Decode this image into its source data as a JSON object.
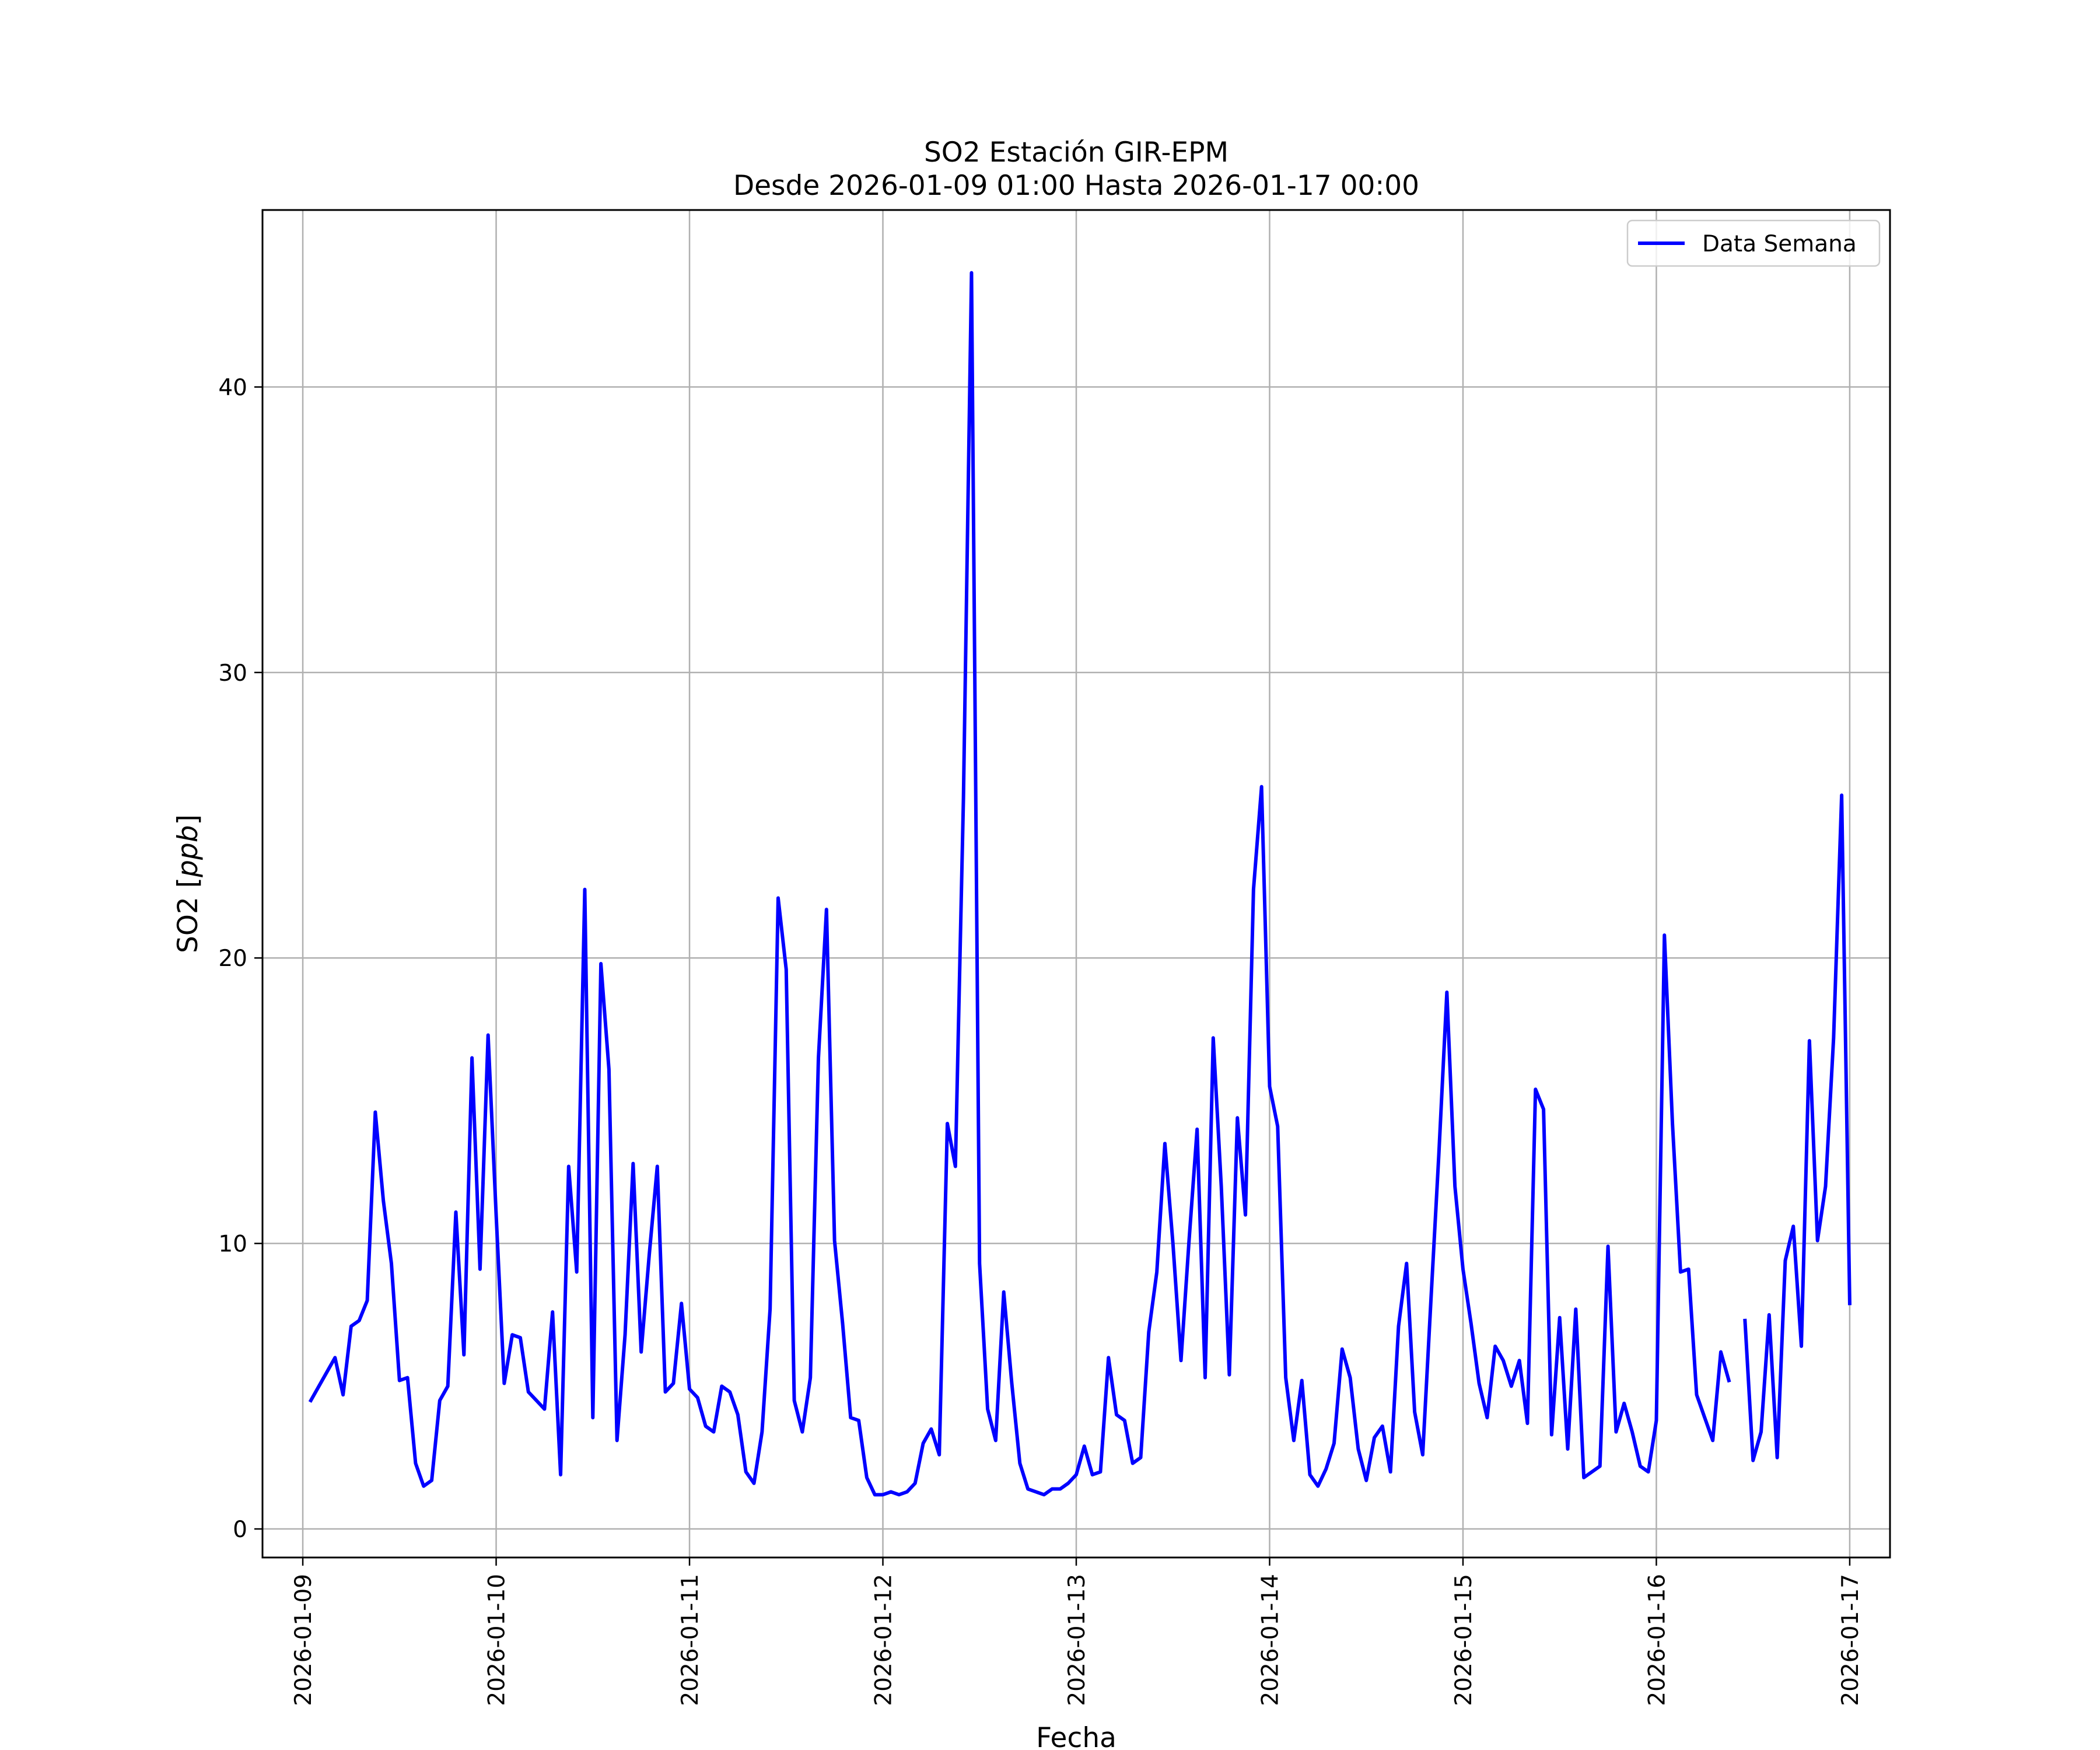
{
  "chart_data": {
    "type": "line",
    "title": "SO2 Estación GIR-EPM",
    "subtitle": "Desde 2026-01-09 01:00 Hasta 2026-01-17 00:00",
    "xlabel": "Fecha",
    "ylabel": "SO2 [ppb]",
    "xlim": [
      "2026-01-08T19:00",
      "2026-01-17T05:00"
    ],
    "ylim": [
      -1,
      46.2
    ],
    "x_ticks": [
      "2026-01-09",
      "2026-01-10",
      "2026-01-11",
      "2026-01-12",
      "2026-01-13",
      "2026-01-14",
      "2026-01-15",
      "2026-01-16",
      "2026-01-17"
    ],
    "y_ticks": [
      0,
      10,
      20,
      30,
      40
    ],
    "grid": true,
    "legend_position": "top-right",
    "colors": {
      "series": "#0000ff",
      "grid": "#b0b0b0"
    },
    "series": [
      {
        "name": "Data Semana",
        "start": "2026-01-09T01:00",
        "interval_hours": 1,
        "values": [
          4.5,
          5.0,
          5.5,
          6.0,
          4.7,
          7.1,
          7.3,
          8.0,
          14.6,
          11.5,
          9.3,
          5.2,
          5.3,
          2.3,
          1.5,
          1.7,
          4.5,
          5.0,
          11.1,
          6.1,
          16.5,
          9.1,
          17.3,
          11.0,
          5.1,
          6.8,
          6.7,
          4.8,
          4.5,
          4.2,
          7.6,
          1.9,
          12.7,
          9.0,
          22.4,
          3.9,
          19.8,
          16.1,
          3.1,
          6.8,
          12.8,
          6.2,
          9.6,
          12.7,
          4.8,
          5.1,
          7.9,
          4.9,
          4.6,
          3.6,
          3.4,
          5.0,
          4.8,
          4.0,
          2.0,
          1.6,
          3.4,
          7.7,
          22.1,
          19.6,
          4.5,
          3.4,
          5.3,
          16.5,
          21.7,
          10.1,
          7.2,
          3.9,
          3.8,
          1.8,
          1.2,
          1.2,
          1.3,
          1.2,
          1.3,
          1.6,
          3.0,
          3.5,
          2.6,
          14.2,
          12.7,
          25.6,
          44.0,
          9.3,
          4.2,
          3.1,
          8.3,
          5.1,
          2.3,
          1.4,
          1.3,
          1.2,
          1.4,
          1.4,
          1.6,
          1.9,
          2.9,
          1.9,
          2.0,
          6.0,
          4.0,
          3.8,
          2.3,
          2.5,
          6.9,
          9.0,
          13.5,
          10.0,
          5.9,
          10.1,
          14.0,
          5.3,
          17.2,
          12.0,
          5.4,
          14.4,
          11.0,
          22.4,
          26.0,
          15.5,
          14.1,
          5.3,
          3.1,
          5.2,
          1.9,
          1.5,
          2.1,
          3.0,
          6.3,
          5.3,
          2.8,
          1.7,
          3.2,
          3.6,
          2.0,
          7.1,
          9.3,
          4.1,
          2.6,
          7.9,
          13.1,
          18.8,
          12.0,
          9.1,
          7.2,
          5.1,
          3.9,
          6.4,
          5.9,
          5.0,
          5.9,
          3.7,
          15.4,
          14.7,
          3.3,
          7.4,
          2.8,
          7.7,
          1.8,
          2.0,
          2.2,
          9.9,
          3.4,
          4.4,
          3.4,
          2.2,
          2.0,
          3.8,
          20.8,
          14.2,
          9.0,
          9.1,
          4.7,
          3.9,
          3.1,
          6.2,
          5.2,
          null,
          7.3,
          2.4,
          3.4,
          7.5,
          2.5,
          9.4,
          10.6,
          6.4,
          17.1,
          10.1,
          12.0,
          17.2,
          25.7,
          7.9
        ]
      }
    ]
  }
}
